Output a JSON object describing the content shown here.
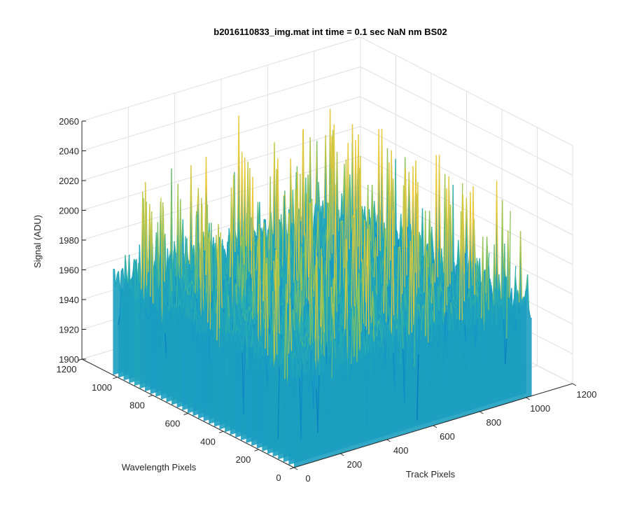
{
  "chart_data": {
    "type": "surface",
    "title": "b2016110833_img.mat int time = 0.1 sec  NaN nm BS02",
    "xlabel": "Track Pixels",
    "ylabel": "Wavelength Pixels",
    "zlabel": "Signal (ADU)",
    "xlim": [
      0,
      1200
    ],
    "ylim": [
      0,
      1200
    ],
    "zlim": [
      1900,
      2060
    ],
    "x_ticks": [
      "0",
      "200",
      "400",
      "600",
      "800",
      "1000",
      "1200"
    ],
    "y_ticks": [
      "0",
      "200",
      "400",
      "600",
      "800",
      "1000",
      "1200"
    ],
    "z_ticks": [
      "1900",
      "1920",
      "1940",
      "1960",
      "1980",
      "2000",
      "2020",
      "2040",
      "2060"
    ],
    "grid": true,
    "colormap": "parula",
    "surface": {
      "x_extent": [
        0,
        1024
      ],
      "y_extent": [
        0,
        1024
      ],
      "typical_range": [
        1940,
        1985
      ],
      "min_approx": 1905,
      "max_approx": 2055
    },
    "colors": {
      "low": "#0072bd",
      "mid": "#1fa5c2",
      "high": "#a6c84a",
      "peak": "#e6c83c",
      "axis": "#262626",
      "grid": "#e0e0e0"
    }
  }
}
